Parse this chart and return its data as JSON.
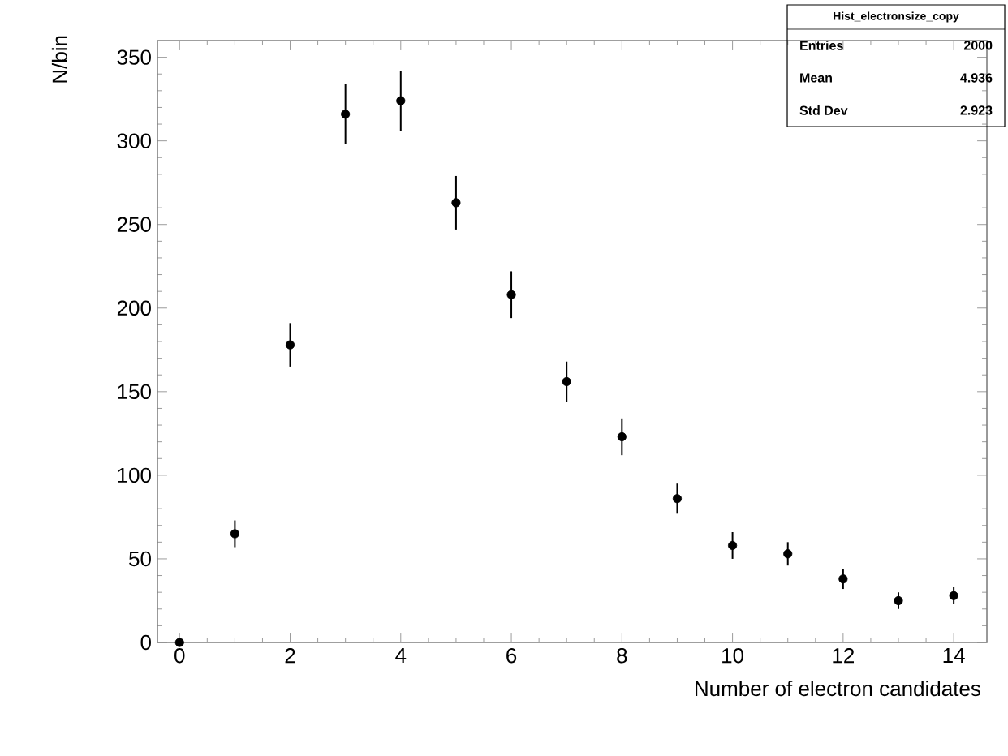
{
  "chart_data": {
    "type": "scatter",
    "xlabel": "Number of electron candidates",
    "ylabel": "N/bin",
    "x": [
      0,
      1,
      2,
      3,
      4,
      5,
      6,
      7,
      8,
      9,
      10,
      11,
      12,
      13,
      14
    ],
    "values": [
      0,
      65,
      178,
      316,
      324,
      263,
      208,
      156,
      123,
      86,
      58,
      53,
      38,
      25,
      28
    ],
    "errors": [
      0,
      8,
      13,
      18,
      18,
      16,
      14,
      12,
      11,
      9,
      8,
      7,
      6,
      5,
      5
    ],
    "color": "#000000",
    "marker": "circle",
    "xlim": [
      -0.4,
      14.6
    ],
    "ylim": [
      0,
      360
    ],
    "xticks": [
      0,
      2,
      4,
      6,
      8,
      10,
      12,
      14
    ],
    "yticks": [
      0,
      50,
      100,
      150,
      200,
      250,
      300,
      350
    ],
    "grid": false,
    "annotations": [
      "Hist_electronsize_copy",
      "Entries",
      "2000",
      "Mean",
      "4.936",
      "Std Dev",
      "2.923"
    ]
  }
}
